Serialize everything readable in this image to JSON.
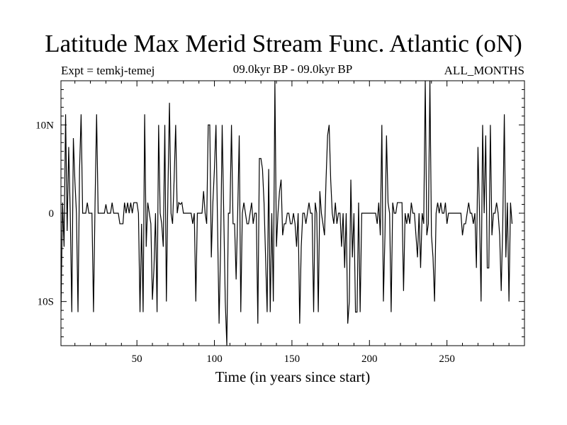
{
  "header": {
    "title": "Latitude Max Merid Stream Func. Atlantic (oN)",
    "expt": "Expt = temkj-temej",
    "subtitle": "09.0kyr BP - 09.0kyr BP",
    "months": "ALL_MONTHS"
  },
  "chart_data": {
    "type": "line",
    "title": "Latitude Max Merid Stream Func. Atlantic (oN)",
    "xlabel": "Time (in years since start)",
    "ylabel": "",
    "xlim": [
      1,
      300
    ],
    "ylim": [
      -15,
      15
    ],
    "xticks": [
      50,
      100,
      150,
      200,
      250
    ],
    "yticks": [
      {
        "value": -10,
        "label": "10S"
      },
      {
        "value": 0,
        "label": "0"
      },
      {
        "value": 10,
        "label": "10N"
      }
    ],
    "grid": false,
    "series": [
      {
        "values": [
          -11.2,
          1.2,
          -3.8,
          11.2,
          -2.0,
          7.5,
          0,
          -11.2,
          8.5,
          3.6,
          0,
          -11.2,
          5.0,
          11.2,
          0,
          0,
          0,
          1.2,
          0,
          0,
          0,
          -11.2,
          1.2,
          11.2,
          0,
          0,
          0,
          0,
          0,
          1.0,
          0,
          0,
          0,
          1.2,
          0,
          0,
          0,
          0,
          -1.2,
          -1.2,
          -1.2,
          1.2,
          0,
          1.2,
          0,
          1.2,
          0,
          1.2,
          1.2,
          1.2,
          0,
          -11.2,
          -1.2,
          -11.2,
          11.2,
          -3.8,
          1.2,
          0,
          -1.2,
          -9.8,
          -6.2,
          0,
          -11.2,
          10.0,
          0,
          -1.2,
          -3.8,
          10.0,
          -10.0,
          2.5,
          12.5,
          0,
          -1.2,
          3.8,
          10.0,
          0,
          1.2,
          1.0,
          1.2,
          0,
          0,
          0,
          0,
          0,
          0,
          -1.2,
          0,
          -10.0,
          0,
          0,
          0,
          0,
          2.5,
          0,
          -1.2,
          10.0,
          10.0,
          -5.0,
          1.2,
          5.0,
          10.0,
          -1.2,
          -12.5,
          -3.8,
          10.0,
          0,
          -10.0,
          -15.0,
          0,
          0,
          10.0,
          -1.2,
          -1.2,
          -7.5,
          0,
          8.8,
          -11.2,
          0,
          1.2,
          0,
          -1.2,
          -1.2,
          0,
          1.2,
          -1.2,
          0,
          0,
          -12.5,
          6.2,
          6.2,
          5.0,
          1.2,
          -5.0,
          -11.2,
          5.0,
          -11.2,
          0,
          -10.0,
          15.0,
          -3.8,
          0,
          2.5,
          3.8,
          -2.5,
          -1.2,
          -1.2,
          0,
          0,
          -1.2,
          -1.2,
          0,
          -1.2,
          -3.8,
          0,
          -12.5,
          -3.8,
          0,
          0,
          -1.2,
          0,
          1.2,
          0,
          0,
          -11.2,
          1.2,
          0,
          -11.2,
          2.5,
          0,
          -1.2,
          -2.5,
          3.8,
          8.8,
          10.0,
          3.8,
          0,
          -1.2,
          1.2,
          -1.2,
          0,
          0,
          -3.8,
          0,
          -6.2,
          0,
          -12.5,
          -10.0,
          3.8,
          -5.0,
          0,
          -11.2,
          -11.2,
          1.2,
          -11.2,
          0,
          0,
          0,
          0,
          0,
          0,
          0,
          0,
          0,
          0,
          -1.2,
          1.2,
          -2.5,
          10.0,
          -10.0,
          -2.5,
          8.8,
          1.2,
          0,
          -11.2,
          1.2,
          0,
          0,
          1.2,
          1.2,
          1.2,
          1.2,
          -8.8,
          0,
          -1.2,
          0,
          -1.2,
          1.2,
          0,
          0,
          -2.5,
          -5.0,
          0,
          -6.2,
          0,
          -1.2,
          15.0,
          -2.5,
          -1.2,
          15.0,
          -2.5,
          -5.0,
          -10.0,
          0,
          1.2,
          0,
          1.2,
          0,
          0,
          1.2,
          -1.2,
          0,
          0,
          0,
          0,
          0,
          0,
          0,
          0,
          0,
          -2.5,
          -1.2,
          -1.2,
          0,
          1.2,
          0,
          0,
          -1.2,
          0,
          -6.2,
          7.5,
          0,
          -10.0,
          10.0,
          0,
          8.8,
          -6.2,
          -6.2,
          10.0,
          -2.5,
          0,
          0,
          1.2,
          0,
          -2.5,
          -8.8,
          -1.2,
          11.2,
          -5.0,
          1.2,
          -10.0,
          1.2,
          -1.2
        ]
      }
    ]
  }
}
